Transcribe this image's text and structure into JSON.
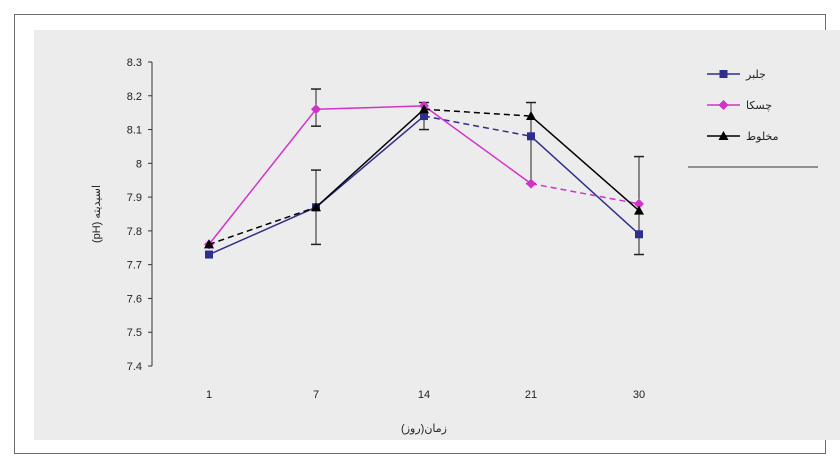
{
  "chart_data": {
    "type": "line",
    "xlabel": "(روز)زمان",
    "ylabel": "(pH) اسیدیته",
    "categories": [
      "1",
      "7",
      "14",
      "21",
      "30"
    ],
    "ylim": [
      7.4,
      8.3
    ],
    "yticks": [
      "8.3",
      "8.2",
      "8.1",
      "8",
      "7.9",
      "7.8",
      "7.7",
      "7.6",
      "7.5",
      "7.4"
    ],
    "ytick_values": [
      8.3,
      8.2,
      8.1,
      8.0,
      7.9,
      7.8,
      7.7,
      7.6,
      7.5,
      7.4
    ],
    "grid": false,
    "legend_position": "right",
    "series": [
      {
        "name": "جلبر",
        "color": "#2e2e8c",
        "marker": "square",
        "line_style": [
          "solid",
          "solid",
          "dashed",
          "solid"
        ],
        "values": [
          7.73,
          7.87,
          8.14,
          8.08,
          7.79
        ]
      },
      {
        "name": "چسکا",
        "color": "#d133c9",
        "marker": "diamond",
        "line_style": [
          "solid",
          "solid",
          "solid",
          "dashed"
        ],
        "values": [
          7.76,
          8.16,
          8.17,
          7.94,
          7.88
        ]
      },
      {
        "name": "مخلوط",
        "color": "#000000",
        "marker": "triangle",
        "line_style": [
          "dashed",
          "solid",
          "dashed",
          "solid"
        ],
        "values": [
          7.76,
          7.87,
          8.16,
          8.14,
          7.86
        ]
      }
    ],
    "error_bars": [
      {
        "category": "7",
        "low": 7.76,
        "high": 7.98
      },
      {
        "category": "7",
        "low": 8.11,
        "high": 8.22
      },
      {
        "category": "14",
        "low": 8.1,
        "high": 8.18
      },
      {
        "category": "21",
        "low": 7.94,
        "high": 8.18
      },
      {
        "category": "30",
        "low": 7.73,
        "high": 8.02
      }
    ]
  }
}
